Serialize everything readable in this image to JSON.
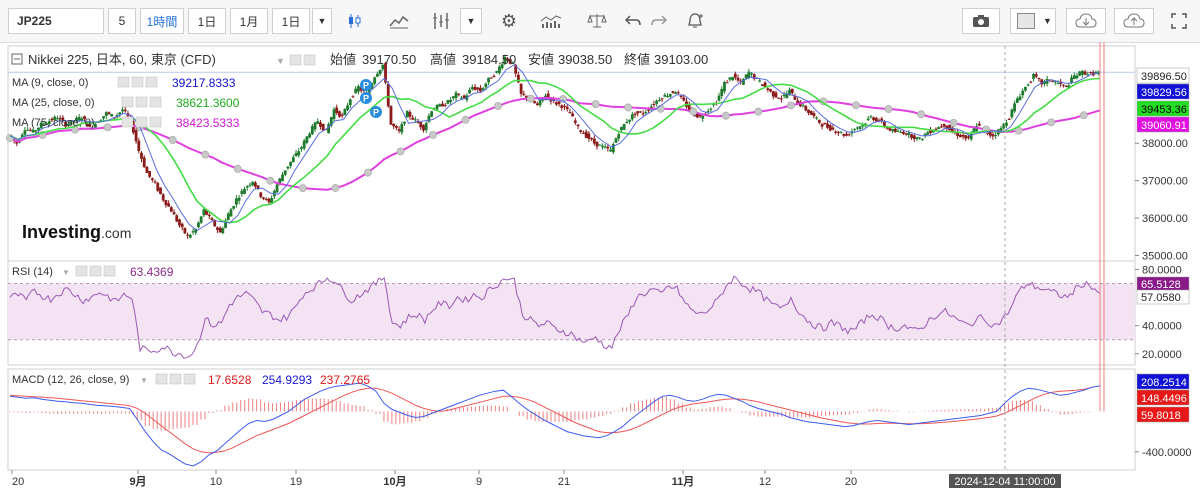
{
  "toolbar": {
    "symbol": "JP225",
    "interval_5": "5",
    "interval_1h": "1時間",
    "interval_1d": "1日",
    "interval_1mo": "1月",
    "interval_1d_b": "1日",
    "icons": [
      "dropdown-arrow",
      "candle-icon",
      "line-chart-icon",
      "indicator-icon",
      "dropdown-arrow",
      "settings-gear-icon",
      "bar-volume-icon",
      "scale-icon",
      "undo-icon",
      "redo-icon",
      "alert-icon",
      "camera-icon",
      "color-box-icon",
      "dropdown-arrow",
      "cloud-download-icon",
      "cloud-upload-icon",
      "fullscreen-icon"
    ]
  },
  "main_panel": {
    "title": "Nikkei 225, 日本, 60, 東京 (CFD)",
    "open_label": "始値",
    "open_value": "39170.50",
    "high_label": "高値",
    "high_value": "39184.50",
    "low_label": "安値",
    "low_value": "39038.50",
    "close_label": "終値",
    "close_value": "39103.00",
    "ma9_label": "MA (9, close, 0)",
    "ma9_value": "39217.8333",
    "ma25_label": "MA (25, close, 0)",
    "ma25_value": "38621.3600",
    "ma75_label": "MA (75, close, 0)",
    "ma75_value": "38423.5333",
    "watermark_bold": "Investing",
    "watermark_suffix": ".com",
    "price_ticks": [
      "38000.00",
      "37000.00",
      "36000.00",
      "35000.00"
    ],
    "price_badges": [
      {
        "text": "39896.50",
        "color": "#ffffff",
        "textcolor": "#222"
      },
      {
        "text": "39829.56",
        "color": "#1010d8",
        "textcolor": "#ffffff"
      },
      {
        "text": "39453.36",
        "color": "#22dd22",
        "textcolor": "#000000"
      },
      {
        "text": "39060.91",
        "color": "#e010e0",
        "textcolor": "#ffffff"
      }
    ],
    "pivot_markers": [
      "P",
      "P",
      "P"
    ]
  },
  "rsi_panel": {
    "label": "RSI (14)",
    "value": "63.4369",
    "ticks": [
      "80.0000",
      "40.0000",
      "20.0000"
    ],
    "badges": [
      {
        "text": "65.5128",
        "color": "#8a1a8a",
        "textcolor": "#ffffff"
      },
      {
        "text": "57.0580",
        "color": "#ffffff",
        "textcolor": "#222"
      }
    ]
  },
  "macd_panel": {
    "label": "MACD (12, 26, close, 9)",
    "value_hist": "17.6528",
    "value_macd": "254.9293",
    "value_signal": "237.2765",
    "ticks": [
      "-400.0000"
    ],
    "badges": [
      {
        "text": "208.2514",
        "color": "#1010d8",
        "textcolor": "#ffffff"
      },
      {
        "text": "148.4496",
        "color": "#e81818",
        "textcolor": "#ffffff"
      },
      {
        "text": "59.8018",
        "color": "#e81818",
        "textcolor": "#ffffff"
      }
    ]
  },
  "time_axis": {
    "labels": [
      "20",
      "9月",
      "10",
      "19",
      "10月",
      "9",
      "21",
      "11月",
      "12",
      "20",
      "2024-12-04 11:00:00"
    ]
  },
  "colors": {
    "ma9": "#5a6ee0",
    "ma25": "#44dd44",
    "ma75": "#e040e0",
    "candle_up": "#1e7b2e",
    "candle_down": "#8b1a1a",
    "rsi_line": "#9b59b6",
    "rsi_band": "#f3e3f3",
    "macd_line": "#3d5bf0",
    "signal_line": "#f05555",
    "hist": "#f08080"
  },
  "chart_data": [
    {
      "type": "candlestick",
      "title": "Nikkei 225, 日本, 60, 東京 (CFD)",
      "y_ticks": [
        35000,
        36000,
        37000,
        38000
      ],
      "ylim": [
        34850,
        40600
      ],
      "x_labels": [
        "20",
        "9月",
        "10",
        "19",
        "10月",
        "9",
        "21",
        "11月",
        "12",
        "20"
      ],
      "close_path": [
        38200,
        38000,
        38400,
        38300,
        38500,
        38600,
        38700,
        38500,
        38600,
        38700,
        38400,
        38600,
        38800,
        38700,
        38900,
        38600,
        37800,
        37200,
        36900,
        36500,
        36200,
        35800,
        35500,
        35700,
        36200,
        35900,
        35600,
        36100,
        36500,
        36800,
        37000,
        36600,
        36400,
        36900,
        37300,
        37600,
        37900,
        38300,
        38600,
        38300,
        38900,
        38700,
        39200,
        39500,
        39300,
        39800,
        40100,
        38500,
        38300,
        38800,
        38600,
        38400,
        38900,
        39000,
        39100,
        39300,
        39200,
        39500,
        39400,
        39700,
        39900,
        40300,
        40100,
        39300,
        39200,
        39000,
        39300,
        39100,
        39000,
        38800,
        38400,
        38200,
        38000,
        37900,
        37800,
        38300,
        38600,
        38800,
        38800,
        39000,
        39200,
        39300,
        39400,
        39100,
        38800,
        38700,
        38900,
        39100,
        39600,
        39800,
        39600,
        39900,
        39700,
        39500,
        39300,
        39200,
        39400,
        39100,
        38900,
        38700,
        38500,
        38400,
        38300,
        38200,
        38400,
        38500,
        38700,
        38600,
        38400,
        38300,
        38300,
        38200,
        38100,
        38300,
        38400,
        38500,
        38300,
        38200,
        38100,
        38500,
        38300,
        38200,
        38400,
        38700,
        39200,
        39500,
        39800,
        39600,
        39700,
        39600,
        39500,
        39800,
        39900,
        39850,
        39900
      ],
      "series": [
        {
          "name": "MA (9, close, 0)",
          "last": 39217.8333
        },
        {
          "name": "MA (25, close, 0)",
          "last": 38621.36
        },
        {
          "name": "MA (75, close, 0)",
          "last": 38423.5333
        }
      ],
      "ohlc_latest": {
        "open": 39170.5,
        "high": 39184.5,
        "low": 39038.5,
        "close": 39103.0
      }
    },
    {
      "type": "line",
      "title": "RSI (14)",
      "y_ticks": [
        80,
        40,
        20
      ],
      "ylim": [
        12,
        86
      ],
      "band": [
        30,
        70
      ],
      "values": [
        60,
        62,
        58,
        65,
        61,
        59,
        63,
        66,
        62,
        58,
        60,
        64,
        61,
        57,
        62,
        60,
        24,
        22,
        23,
        25,
        21,
        20,
        18,
        26,
        45,
        40,
        42,
        55,
        60,
        63,
        58,
        50,
        48,
        44,
        46,
        52,
        62,
        66,
        70,
        74,
        72,
        64,
        58,
        62,
        66,
        70,
        75,
        42,
        40,
        46,
        48,
        44,
        52,
        56,
        54,
        60,
        58,
        62,
        60,
        66,
        70,
        74,
        72,
        48,
        44,
        40,
        42,
        38,
        36,
        34,
        30,
        28,
        32,
        26,
        25,
        38,
        48,
        60,
        63,
        66,
        62,
        68,
        66,
        56,
        50,
        48,
        52,
        58,
        68,
        74,
        70,
        66,
        64,
        58,
        54,
        52,
        60,
        50,
        44,
        40,
        38,
        42,
        40,
        36,
        38,
        44,
        48,
        45,
        40,
        38,
        40,
        36,
        38,
        44,
        48,
        50,
        46,
        42,
        40,
        46,
        44,
        40,
        44,
        52,
        64,
        70,
        68,
        66,
        64,
        62,
        60,
        66,
        70,
        68,
        63
      ],
      "last": 63.4369
    },
    {
      "type": "line",
      "title": "MACD (12, 26, close, 9)",
      "y_ticks": [
        -400
      ],
      "ylim": [
        -580,
        420
      ],
      "series": [
        {
          "name": "MACD",
          "last": 254.9293
        },
        {
          "name": "Signal",
          "last": 237.2765
        },
        {
          "name": "Histogram",
          "last": 17.6528
        }
      ],
      "macd_values": [
        150,
        140,
        130,
        135,
        120,
        110,
        100,
        95,
        85,
        80,
        70,
        60,
        55,
        50,
        40,
        30,
        -80,
        -200,
        -300,
        -380,
        -420,
        -470,
        -520,
        -540,
        -500,
        -430,
        -390,
        -320,
        -250,
        -180,
        -120,
        -90,
        -100,
        -80,
        -40,
        0,
        60,
        120,
        160,
        200,
        230,
        250,
        260,
        270,
        280,
        250,
        200,
        80,
        20,
        -10,
        -40,
        -60,
        -50,
        -20,
        10,
        40,
        70,
        100,
        130,
        160,
        180,
        200,
        210,
        150,
        80,
        20,
        -30,
        -80,
        -120,
        -160,
        -200,
        -220,
        -240,
        -250,
        -260,
        -240,
        -200,
        -150,
        -80,
        -20,
        40,
        100,
        150,
        160,
        140,
        110,
        100,
        120,
        150,
        170,
        160,
        130,
        100,
        60,
        30,
        10,
        -10,
        -30,
        -60,
        -80,
        -100,
        -110,
        -120,
        -130,
        -140,
        -150,
        -140,
        -120,
        -100,
        -90,
        -100,
        -110,
        -120,
        -130,
        -120,
        -110,
        -100,
        -90,
        -80,
        -70,
        -60,
        -50,
        -40,
        -20,
        0,
        80,
        150,
        200,
        230,
        220,
        200,
        180,
        160,
        170,
        190,
        210,
        240,
        255
      ],
      "signal_values": [
        160,
        155,
        150,
        146,
        142,
        136,
        130,
        122,
        114,
        106,
        98,
        90,
        82,
        74,
        66,
        58,
        30,
        -20,
        -80,
        -140,
        -200,
        -260,
        -320,
        -370,
        -400,
        -410,
        -405,
        -390,
        -360,
        -320,
        -280,
        -240,
        -210,
        -180,
        -150,
        -120,
        -80,
        -40,
        0,
        40,
        80,
        120,
        160,
        190,
        215,
        230,
        230,
        210,
        180,
        140,
        100,
        60,
        30,
        10,
        0,
        10,
        30,
        50,
        70,
        90,
        110,
        130,
        150,
        150,
        140,
        120,
        90,
        50,
        10,
        -30,
        -70,
        -110,
        -140,
        -170,
        -200,
        -210,
        -210,
        -200,
        -180,
        -150,
        -110,
        -70,
        -30,
        10,
        40,
        60,
        75,
        85,
        95,
        110,
        120,
        125,
        120,
        110,
        95,
        75,
        55,
        35,
        15,
        -5,
        -25,
        -45,
        -65,
        -80,
        -95,
        -110,
        -120,
        -125,
        -125,
        -120,
        -118,
        -118,
        -120,
        -122,
        -122,
        -120,
        -116,
        -110,
        -104,
        -96,
        -88,
        -80,
        -70,
        -60,
        -45,
        -20,
        20,
        60,
        100,
        140,
        170,
        190,
        200,
        205,
        210,
        220,
        237
      ]
    }
  ]
}
